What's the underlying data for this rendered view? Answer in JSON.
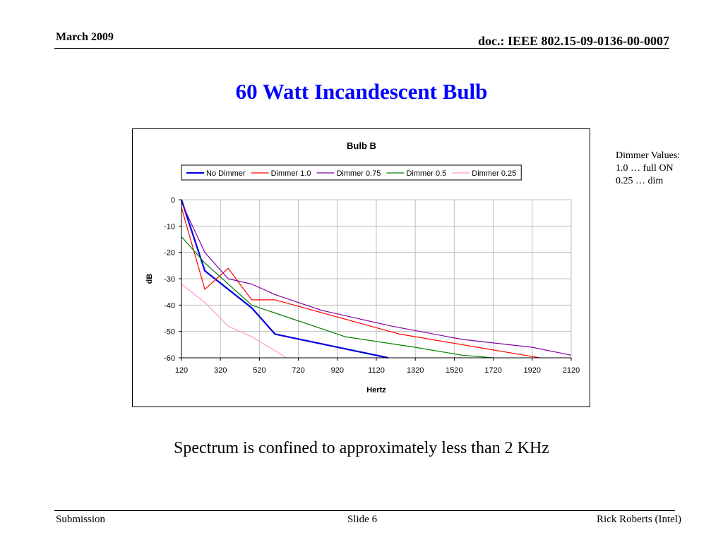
{
  "header": {
    "date": "March 2009",
    "doc_id": "doc.: IEEE 802.15-09-0136-00-0007"
  },
  "slide_title": "60 Watt Incandescent Bulb",
  "note": {
    "line1": "Dimmer Values:",
    "line2": "1.0 … full ON",
    "line3": "0.25 … dim"
  },
  "caption": "Spectrum is confined to approximately less than 2 KHz",
  "footer": {
    "left": "Submission",
    "center": "Slide 6",
    "right": "Rick Roberts (Intel)"
  },
  "chart_data": {
    "type": "line",
    "title": "Bulb B",
    "xlabel": "Hertz",
    "ylabel": "dB",
    "xlim": [
      120,
      2120
    ],
    "ylim": [
      -60,
      0
    ],
    "xticks": [
      120,
      320,
      520,
      720,
      920,
      1120,
      1320,
      1520,
      1720,
      1920,
      2120
    ],
    "yticks": [
      0,
      -10,
      -20,
      -30,
      -40,
      -50,
      -60
    ],
    "grid": true,
    "legend_position": "top",
    "series": [
      {
        "name": "No Dimmer",
        "color": "#0000dd",
        "stroke_width": 2.2,
        "points": [
          [
            120,
            0
          ],
          [
            240,
            -27
          ],
          [
            480,
            -41
          ],
          [
            600,
            -51
          ],
          [
            1180,
            -60
          ]
        ]
      },
      {
        "name": "Dimmer 1.0",
        "color": "#ff0000",
        "stroke_width": 1.2,
        "points": [
          [
            120,
            -3
          ],
          [
            240,
            -34
          ],
          [
            360,
            -26
          ],
          [
            480,
            -38
          ],
          [
            600,
            -38
          ],
          [
            1240,
            -51
          ],
          [
            1640,
            -56
          ],
          [
            1960,
            -60
          ]
        ]
      },
      {
        "name": "Dimmer 0.75",
        "color": "#8000a0",
        "stroke_width": 1.2,
        "points": [
          [
            120,
            -1
          ],
          [
            240,
            -20
          ],
          [
            360,
            -30
          ],
          [
            480,
            -32
          ],
          [
            600,
            -36
          ],
          [
            840,
            -42
          ],
          [
            1200,
            -48
          ],
          [
            1560,
            -53
          ],
          [
            1920,
            -56
          ],
          [
            2120,
            -59
          ]
        ]
      },
      {
        "name": "Dimmer 0.5",
        "color": "#008000",
        "stroke_width": 1.2,
        "points": [
          [
            120,
            -14
          ],
          [
            240,
            -24
          ],
          [
            480,
            -40
          ],
          [
            600,
            -43
          ],
          [
            960,
            -52
          ],
          [
            1320,
            -56
          ],
          [
            1560,
            -59
          ],
          [
            1720,
            -60
          ]
        ]
      },
      {
        "name": "Dimmer 0.25",
        "color": "#ff99cc",
        "stroke_width": 1.2,
        "points": [
          [
            120,
            -32
          ],
          [
            240,
            -39
          ],
          [
            360,
            -48
          ],
          [
            480,
            -52
          ],
          [
            660,
            -60
          ]
        ]
      }
    ]
  }
}
